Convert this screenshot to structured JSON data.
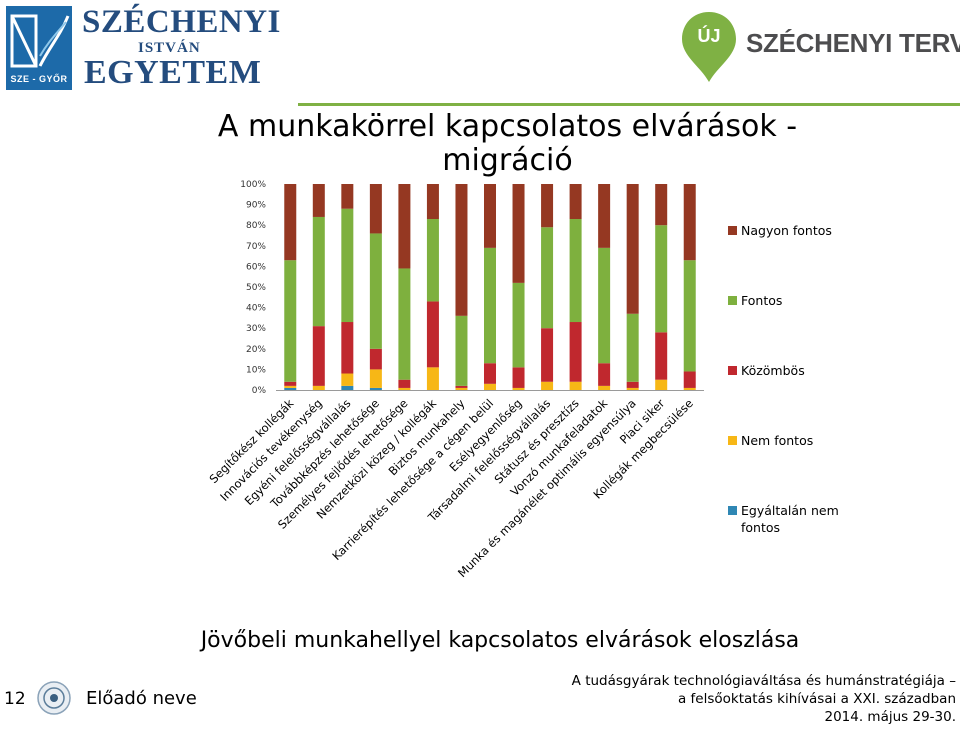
{
  "header": {
    "left_logo": {
      "line1": "SZÉCHENYI",
      "line2": "ISTVÁN",
      "line3": "EGYETEM",
      "seal_caption": "SZE - GYŐR"
    },
    "right_logo": {
      "pin_label": "ÚJ",
      "text": "SZÉCHENYI TERV"
    }
  },
  "slide": {
    "title_line1": "A munkakörrel kapcsolatos elvárások -",
    "title_line2": "migráció",
    "caption": "Jövőbeli munkahellyel kapcsolatos elvárások eloszlása"
  },
  "footer": {
    "page_number": "12",
    "presenter": "Előadó neve",
    "conference_line1": "A tudásgyárak technológiaváltása és humánstratégiája –",
    "conference_line2": "a felsőoktatás kihívásai a XXI. században",
    "date": "2014. május 29-30."
  },
  "colors": {
    "nagyon_fontos": "#953822",
    "fontos": "#7eb03e",
    "kozombos": "#c0282e",
    "nem_fontos": "#f7b716",
    "egyaltalan_nem_fontos": "#2f87b4",
    "accent_green": "#7fb144",
    "logo_blue": "#244c7e"
  },
  "chart_data": {
    "type": "bar",
    "stacked": true,
    "percent": true,
    "ylim": [
      0,
      100
    ],
    "yticks": [
      "0%",
      "10%",
      "20%",
      "30%",
      "40%",
      "50%",
      "60%",
      "70%",
      "80%",
      "90%",
      "100%"
    ],
    "grid": false,
    "legend_position": "right",
    "categories": [
      "Segítőkész kollégák",
      "Innovációs tevékenység",
      "Egyéni felelősségvállalás",
      "Továbbképzés lehetősége",
      "Személyes fejlődés lehetősége",
      "Nemzetközi közeg / kollégák",
      "Biztos munkahely",
      "Karrierépítés lehetősége a cégen belül",
      "Esélyegyenlőség",
      "Társadalmi felelősségvállalás",
      "Státusz és presztízs",
      "Vonzó munkafeladatok",
      "Munka és magánélet optimális egyensúlya",
      "Piaci siker",
      "Kollégák megbecsülése"
    ],
    "series": [
      {
        "name": "Egyáltalán nem fontos",
        "color_key": "egyaltalan_nem_fontos",
        "values": [
          1,
          0,
          2,
          1,
          0,
          0,
          0,
          0,
          0,
          0,
          0,
          0,
          0,
          0,
          0
        ]
      },
      {
        "name": "Nem fontos",
        "color_key": "nem_fontos",
        "values": [
          1,
          2,
          6,
          9,
          1,
          11,
          1,
          3,
          1,
          4,
          4,
          2,
          1,
          5,
          1
        ]
      },
      {
        "name": "Közömbös",
        "color_key": "kozombos",
        "values": [
          2,
          29,
          25,
          10,
          4,
          32,
          1,
          10,
          10,
          26,
          29,
          11,
          3,
          23,
          8
        ]
      },
      {
        "name": "Fontos",
        "color_key": "fontos",
        "values": [
          59,
          53,
          55,
          56,
          54,
          40,
          34,
          56,
          41,
          49,
          50,
          56,
          33,
          52,
          54
        ]
      },
      {
        "name": "Nagyon fontos",
        "color_key": "nagyon_fontos",
        "values": [
          37,
          16,
          12,
          24,
          41,
          17,
          64,
          31,
          48,
          21,
          17,
          31,
          63,
          20,
          37
        ]
      }
    ],
    "legend_order": [
      "Nagyon fontos",
      "Fontos",
      "Közömbös",
      "Nem fontos",
      "Egyáltalán nem fontos"
    ]
  }
}
